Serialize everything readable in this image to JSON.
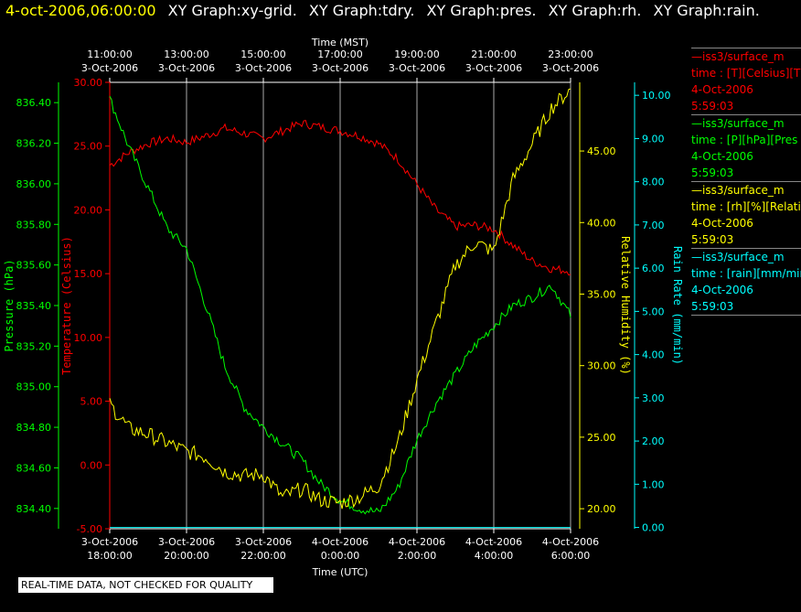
{
  "header": {
    "date": "4-oct-2006,06:00:00",
    "tabs": [
      "XY Graph:xy-grid.",
      "XY Graph:tdry.",
      "XY Graph:pres.",
      "XY Graph:rh.",
      "XY Graph:rain."
    ]
  },
  "legend": [
    {
      "name": "—iss3/surface_m",
      "units": "time : [T][Celsius][T",
      "date": "4-Oct-2006",
      "time": "5:59:03",
      "color": "#ff0000"
    },
    {
      "name": "—iss3/surface_m",
      "units": "time : [P][hPa][Pres",
      "date": "4-Oct-2006",
      "time": "5:59:03",
      "color": "#00ff00"
    },
    {
      "name": "—iss3/surface_m",
      "units": "time : [rh][%][Relativ",
      "date": "4-Oct-2006",
      "time": "5:59:03",
      "color": "#ffff00"
    },
    {
      "name": "—iss3/surface_m",
      "units": "time : [rain][mm/mir",
      "date": "4-Oct-2006",
      "time": "5:59:03",
      "color": "#00ffff"
    }
  ],
  "quality_note": "REAL-TIME DATA, NOT CHECKED FOR QUALITY",
  "chart_data": {
    "type": "line",
    "x_top_label": "Time (MST)",
    "x_bottom_label": "Time (UTC)",
    "x_top_ticks": [
      {
        "time": "11:00:00",
        "date": "3-Oct-2006"
      },
      {
        "time": "13:00:00",
        "date": "3-Oct-2006"
      },
      {
        "time": "15:00:00",
        "date": "3-Oct-2006"
      },
      {
        "time": "17:00:00",
        "date": "3-Oct-2006"
      },
      {
        "time": "19:00:00",
        "date": "3-Oct-2006"
      },
      {
        "time": "21:00:00",
        "date": "3-Oct-2006"
      },
      {
        "time": "23:00:00",
        "date": "3-Oct-2006"
      }
    ],
    "x_bottom_ticks": [
      {
        "date": "3-Oct-2006",
        "time": "18:00:00"
      },
      {
        "date": "3-Oct-2006",
        "time": "20:00:00"
      },
      {
        "date": "3-Oct-2006",
        "time": "22:00:00"
      },
      {
        "date": "4-Oct-2006",
        "time": "0:00:00"
      },
      {
        "date": "4-Oct-2006",
        "time": "2:00:00"
      },
      {
        "date": "4-Oct-2006",
        "time": "4:00:00"
      },
      {
        "date": "4-Oct-2006",
        "time": "6:00:00"
      }
    ],
    "axes": {
      "pressure": {
        "label": "Pressure (hPa)",
        "color": "#00ff00",
        "range": [
          834.3,
          836.5
        ],
        "ticks": [
          "834.40",
          "834.60",
          "834.80",
          "835.00",
          "835.20",
          "835.40",
          "835.60",
          "835.80",
          "836.00",
          "836.20",
          "836.40"
        ]
      },
      "temperature": {
        "label": "Temperature (Celsius)",
        "color": "#ff0000",
        "range": [
          -5,
          30
        ],
        "ticks": [
          "-5.00",
          "0.00",
          "5.00",
          "10.00",
          "15.00",
          "20.00",
          "25.00",
          "30.00"
        ]
      },
      "humidity": {
        "label": "Relative Humidity (%)",
        "color": "#ffff00",
        "range": [
          18.6,
          49.8
        ],
        "ticks": [
          "20.00",
          "25.00",
          "30.00",
          "35.00",
          "40.00",
          "45.00"
        ]
      },
      "rain": {
        "label": "Rain Rate (mm/min)",
        "color": "#00ffff",
        "range": [
          -0.03,
          10.3
        ],
        "ticks": [
          "0.00",
          "1.00",
          "2.00",
          "3.00",
          "4.00",
          "5.00",
          "6.00",
          "7.00",
          "8.00",
          "9.00",
          "10.00"
        ]
      }
    },
    "x_hours_utc_from_18": [
      0,
      0.5,
      1,
      1.5,
      2,
      2.5,
      3,
      3.5,
      4,
      4.5,
      5,
      5.5,
      6,
      6.5,
      7,
      7.5,
      8,
      8.5,
      9,
      9.5,
      10,
      10.5,
      11,
      11.5,
      12
    ],
    "series": [
      {
        "name": "iss3/surface_m [T][Celsius]",
        "axis": "temperature",
        "color": "#ff0000",
        "values": [
          23.5,
          24.5,
          25.2,
          25.6,
          25.3,
          25.8,
          26.4,
          26.0,
          25.6,
          26.2,
          26.8,
          26.5,
          26.2,
          25.8,
          25.2,
          24.0,
          22.0,
          20.0,
          18.7,
          18.8,
          18.5,
          17.2,
          16.0,
          15.4,
          15.2
        ]
      },
      {
        "name": "iss3/surface_m [P][hPa]",
        "axis": "pressure",
        "color": "#00ff00",
        "values": [
          836.42,
          836.18,
          835.98,
          835.78,
          835.68,
          835.4,
          835.1,
          834.9,
          834.8,
          834.72,
          834.64,
          834.52,
          834.44,
          834.4,
          834.38,
          834.5,
          834.74,
          834.92,
          835.06,
          835.2,
          835.3,
          835.4,
          835.44,
          835.5,
          835.35
        ]
      },
      {
        "name": "iss3/surface_m [rh][%]",
        "axis": "humidity",
        "color": "#ffff00",
        "values": [
          27.3,
          25.6,
          25.2,
          24.6,
          24.0,
          23.6,
          22.6,
          22.3,
          22.4,
          20.8,
          21.4,
          20.6,
          20.4,
          20.8,
          21.6,
          24.6,
          29.0,
          33.0,
          37.0,
          38.6,
          38.0,
          43.0,
          45.5,
          48.0,
          49.3
        ]
      },
      {
        "name": "iss3/surface_m [rain][mm/min]",
        "axis": "rain",
        "color": "#00ffff",
        "values": [
          0,
          0,
          0,
          0,
          0,
          0,
          0,
          0,
          0,
          0,
          0,
          0,
          0,
          0,
          0,
          0,
          0,
          0,
          0,
          0,
          0,
          0,
          0,
          0,
          0
        ]
      }
    ]
  }
}
